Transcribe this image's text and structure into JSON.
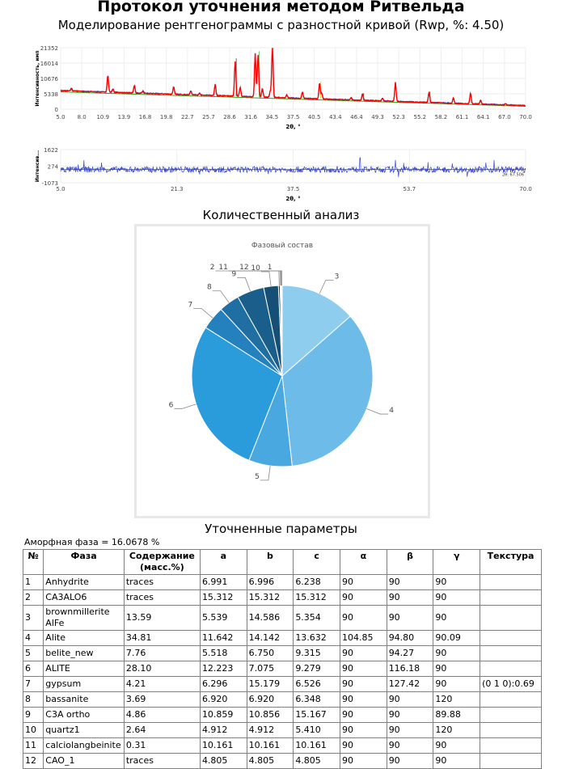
{
  "header": {
    "title": "Протокол уточнения методом Ритвельда",
    "subtitle": "Моделирование рентгенограммы с разностной кривой (Rwp, %: 4.50)"
  },
  "chart_data": [
    {
      "type": "line",
      "ylabel": "Интенсивность, имп",
      "xlabel": "2θ, °",
      "xlim": [
        5.0,
        70.0
      ],
      "ylim": [
        0,
        21352
      ],
      "xticks": [
        "5.0",
        "8.0",
        "10.9",
        "13.9",
        "16.8",
        "19.8",
        "22.7",
        "25.7",
        "28.6",
        "31.6",
        "34.5",
        "37.5",
        "40.5",
        "43.4",
        "46.4",
        "49.3",
        "52.3",
        "55.2",
        "58.2",
        "61.1",
        "64.1",
        "67.0",
        "70.0"
      ],
      "yticks": [
        "0",
        "5338",
        "10676",
        "16014",
        "21352"
      ],
      "grid": true,
      "background": {
        "start": 6400,
        "end": 1200
      },
      "peaks": [
        [
          6.5,
          900
        ],
        [
          11.6,
          5800
        ],
        [
          12.3,
          1200
        ],
        [
          15.3,
          2500
        ],
        [
          16.5,
          800
        ],
        [
          20.8,
          2600
        ],
        [
          23.2,
          1300
        ],
        [
          24.4,
          700
        ],
        [
          26.6,
          3900
        ],
        [
          29.4,
          12000
        ],
        [
          30.1,
          3200
        ],
        [
          32.2,
          15000
        ],
        [
          32.6,
          14500
        ],
        [
          33.2,
          3000
        ],
        [
          34.3,
          2000
        ],
        [
          34.6,
          17000
        ],
        [
          36.6,
          1000
        ],
        [
          38.8,
          2200
        ],
        [
          41.2,
          5500
        ],
        [
          41.5,
          2000
        ],
        [
          45.6,
          900
        ],
        [
          47.2,
          2300
        ],
        [
          50.0,
          900
        ],
        [
          51.8,
          6500
        ],
        [
          56.5,
          3600
        ],
        [
          59.9,
          1800
        ],
        [
          62.3,
          3700
        ],
        [
          63.7,
          1200
        ],
        [
          67.2,
          400
        ]
      ],
      "series_colors": [
        "#ff0000",
        "#3344cc",
        "#22aa22",
        "#000000",
        "#cccc00",
        "#999999"
      ]
    },
    {
      "type": "line",
      "ylabel": "Интенсив...",
      "xlabel": "2θ, °",
      "xlim": [
        5.0,
        70.0
      ],
      "ylim": [
        -1073,
        1622
      ],
      "xticks": [
        "5.0",
        "21.3",
        "37.5",
        "53.7",
        "70.0"
      ],
      "yticks": [
        "-1073",
        "274",
        "1622"
      ],
      "cursor_label": "2θ: 67.506",
      "color": "#3344cc"
    },
    {
      "type": "pie",
      "title": "Фазовый состав",
      "labels": [
        "1",
        "2",
        "3",
        "4",
        "5",
        "6",
        "7",
        "8",
        "9",
        "10",
        "11",
        "12"
      ],
      "values": [
        0,
        0,
        13.59,
        34.81,
        7.76,
        28.1,
        4.21,
        3.69,
        4.86,
        2.64,
        0.31,
        0
      ],
      "colors": [
        "#b9e0f5",
        "#a6d8f3",
        "#8fcdef",
        "#6cbbe8",
        "#4aa8e0",
        "#2a9bdb",
        "#2481bd",
        "#1f6fa3",
        "#1a5f8c",
        "#154f76",
        "#0f3c5b",
        "#666666"
      ]
    }
  ],
  "sections": {
    "quant": "Количественный анализ",
    "params": "Уточненные параметры"
  },
  "amorphous": "Аморфная фаза = 16.0678 %",
  "table": {
    "headers": [
      "№",
      "Фаза",
      "Содержание (масс.%)",
      "a",
      "b",
      "c",
      "α",
      "β",
      "γ",
      "Текстура"
    ],
    "rows": [
      [
        "1",
        "Anhydrite",
        "traces",
        "6.991",
        "6.996",
        "6.238",
        "90",
        "90",
        "90",
        ""
      ],
      [
        "2",
        "CA3ALO6",
        "traces",
        "15.312",
        "15.312",
        "15.312",
        "90",
        "90",
        "90",
        ""
      ],
      [
        "3",
        "brownmillerite AlFe",
        "13.59",
        "5.539",
        "14.586",
        "5.354",
        "90",
        "90",
        "90",
        ""
      ],
      [
        "4",
        "Alite",
        "34.81",
        "11.642",
        "14.142",
        "13.632",
        "104.85",
        "94.80",
        "90.09",
        ""
      ],
      [
        "5",
        "belite_new",
        "7.76",
        "5.518",
        "6.750",
        "9.315",
        "90",
        "94.27",
        "90",
        ""
      ],
      [
        "6",
        "ALITE",
        "28.10",
        "12.223",
        "7.075",
        "9.279",
        "90",
        "116.18",
        "90",
        ""
      ],
      [
        "7",
        "gypsum",
        "4.21",
        "6.296",
        "15.179",
        "6.526",
        "90",
        "127.42",
        "90",
        "(0 1 0):0.69"
      ],
      [
        "8",
        "bassanite",
        "3.69",
        "6.920",
        "6.920",
        "6.348",
        "90",
        "90",
        "120",
        ""
      ],
      [
        "9",
        "C3A ortho",
        "4.86",
        "10.859",
        "10.856",
        "15.167",
        "90",
        "90",
        "89.88",
        ""
      ],
      [
        "10",
        "quartz1",
        "2.64",
        "4.912",
        "4.912",
        "5.410",
        "90",
        "90",
        "120",
        ""
      ],
      [
        "11",
        "calciolangbeinite",
        "0.31",
        "10.161",
        "10.161",
        "10.161",
        "90",
        "90",
        "90",
        ""
      ],
      [
        "12",
        "CAO_1",
        "traces",
        "4.805",
        "4.805",
        "4.805",
        "90",
        "90",
        "90",
        ""
      ]
    ]
  }
}
